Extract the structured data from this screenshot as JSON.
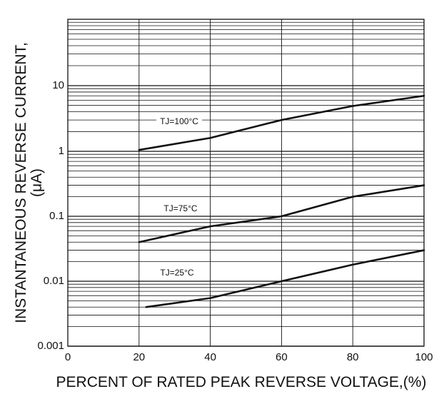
{
  "chart_data": {
    "type": "line",
    "title": "",
    "xlabel": "PERCENT OF RATED PEAK REVERSE VOLTAGE,(%)",
    "ylabel_line1": "INSTANTANEOUS REVERSE CURRENT,",
    "ylabel_line2": "(μA)",
    "xlim": [
      0,
      100
    ],
    "ylim": [
      0.001,
      100
    ],
    "y_scale": "log",
    "grid": true,
    "legend": "none",
    "x_ticks": [
      0,
      20,
      40,
      60,
      80,
      100
    ],
    "x_tick_labels": [
      "0",
      "20",
      "40",
      "60",
      "80",
      "100"
    ],
    "y_ticks": [
      0.001,
      0.01,
      0.1,
      1,
      10,
      100
    ],
    "y_tick_labels": [
      "0.001",
      "0.01",
      "0.1",
      "1",
      "10",
      "100"
    ],
    "series": [
      {
        "name": "TJ=100°C",
        "label_text": "TJ=100°C",
        "x": [
          20,
          40,
          60,
          80,
          100
        ],
        "values": [
          1.05,
          1.6,
          3.0,
          4.9,
          7.0
        ]
      },
      {
        "name": "TJ=75°C",
        "label_text": "TJ=75°C",
        "x": [
          20,
          40,
          60,
          80,
          100
        ],
        "values": [
          0.04,
          0.07,
          0.1,
          0.2,
          0.3
        ]
      },
      {
        "name": "TJ=25°C",
        "label_text": "TJ=25°C",
        "x": [
          22,
          40,
          60,
          80,
          100
        ],
        "values": [
          0.004,
          0.0055,
          0.01,
          0.018,
          0.03
        ]
      }
    ],
    "colors": {
      "line": "#111111",
      "grid": "#111111",
      "background": "#ffffff"
    }
  }
}
